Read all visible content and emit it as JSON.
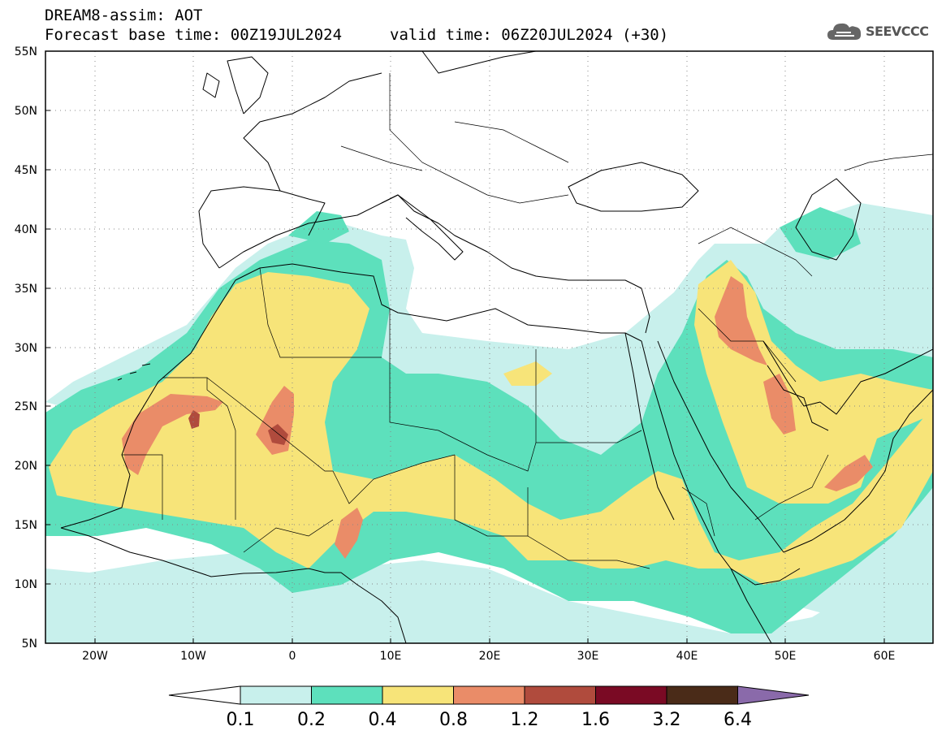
{
  "header": {
    "title": "DREAM8-assim: AOT",
    "base_time": "Forecast base time: 00Z19JUL2024",
    "valid_time": "valid time: 06Z20JUL2024 (+30)"
  },
  "logo": {
    "text": "SEEVCCC",
    "icon": "cloud-icon"
  },
  "map": {
    "lat_labels": [
      "55N",
      "50N",
      "45N",
      "40N",
      "35N",
      "30N",
      "25N",
      "20N",
      "15N",
      "10N",
      "5N"
    ],
    "lon_labels": [
      "20W",
      "10W",
      "0",
      "10E",
      "20E",
      "30E",
      "40E",
      "50E",
      "60E"
    ],
    "lat_range": [
      5,
      55
    ],
    "lon_range": [
      -25,
      65
    ],
    "grid": "dotted"
  },
  "colorbar": {
    "labels": [
      "0.1",
      "0.2",
      "0.4",
      "0.8",
      "1.2",
      "1.6",
      "3.2",
      "6.4"
    ],
    "colors": [
      "#ffffff",
      "#c8f0ec",
      "#5de0bc",
      "#f7e479",
      "#ea8c68",
      "#b04b3d",
      "#7a0a24",
      "#4a2b18",
      "#8a6aaa"
    ]
  }
}
